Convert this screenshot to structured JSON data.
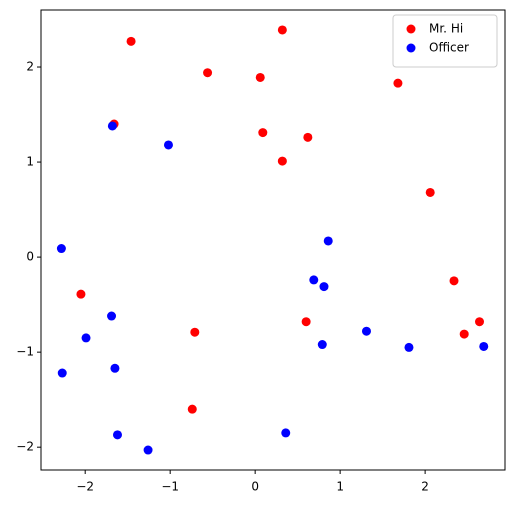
{
  "chart_data": {
    "type": "scatter",
    "series": [
      {
        "name": "Mr. Hi",
        "color": "#ff0000",
        "x": [
          -1.46,
          0.32,
          -0.56,
          0.06,
          1.68,
          -1.66,
          0.09,
          0.62,
          0.32,
          2.06,
          -2.05,
          2.34,
          0.6,
          -0.71,
          2.46,
          2.64,
          -0.74
        ],
        "y": [
          2.27,
          2.39,
          1.94,
          1.89,
          1.83,
          1.4,
          1.31,
          1.26,
          1.01,
          0.68,
          -0.39,
          -0.25,
          -0.68,
          -0.79,
          -0.81,
          -0.68,
          -1.6
        ]
      },
      {
        "name": "Officer",
        "color": "#0000ff",
        "x": [
          -1.68,
          -1.02,
          -2.28,
          0.86,
          0.69,
          0.81,
          -1.69,
          -1.99,
          1.31,
          0.79,
          1.81,
          2.69,
          -1.65,
          -2.27,
          -1.62,
          0.36,
          -1.26
        ],
        "y": [
          1.38,
          1.18,
          0.09,
          0.17,
          -0.24,
          -0.31,
          -0.62,
          -0.85,
          -0.78,
          -0.92,
          -0.95,
          -0.94,
          -1.17,
          -1.22,
          -1.87,
          -1.85,
          -2.03
        ]
      }
    ],
    "xlim": [
      -2.52,
      2.94
    ],
    "ylim": [
      -2.24,
      2.6
    ],
    "xticks": [
      {
        "value": -2,
        "label": "−2"
      },
      {
        "value": -1,
        "label": "−1"
      },
      0,
      1,
      2
    ],
    "yticks": [
      {
        "value": -2,
        "label": "−2"
      },
      {
        "value": -1,
        "label": "−1"
      },
      0,
      1,
      2
    ],
    "legend": "upper right"
  }
}
